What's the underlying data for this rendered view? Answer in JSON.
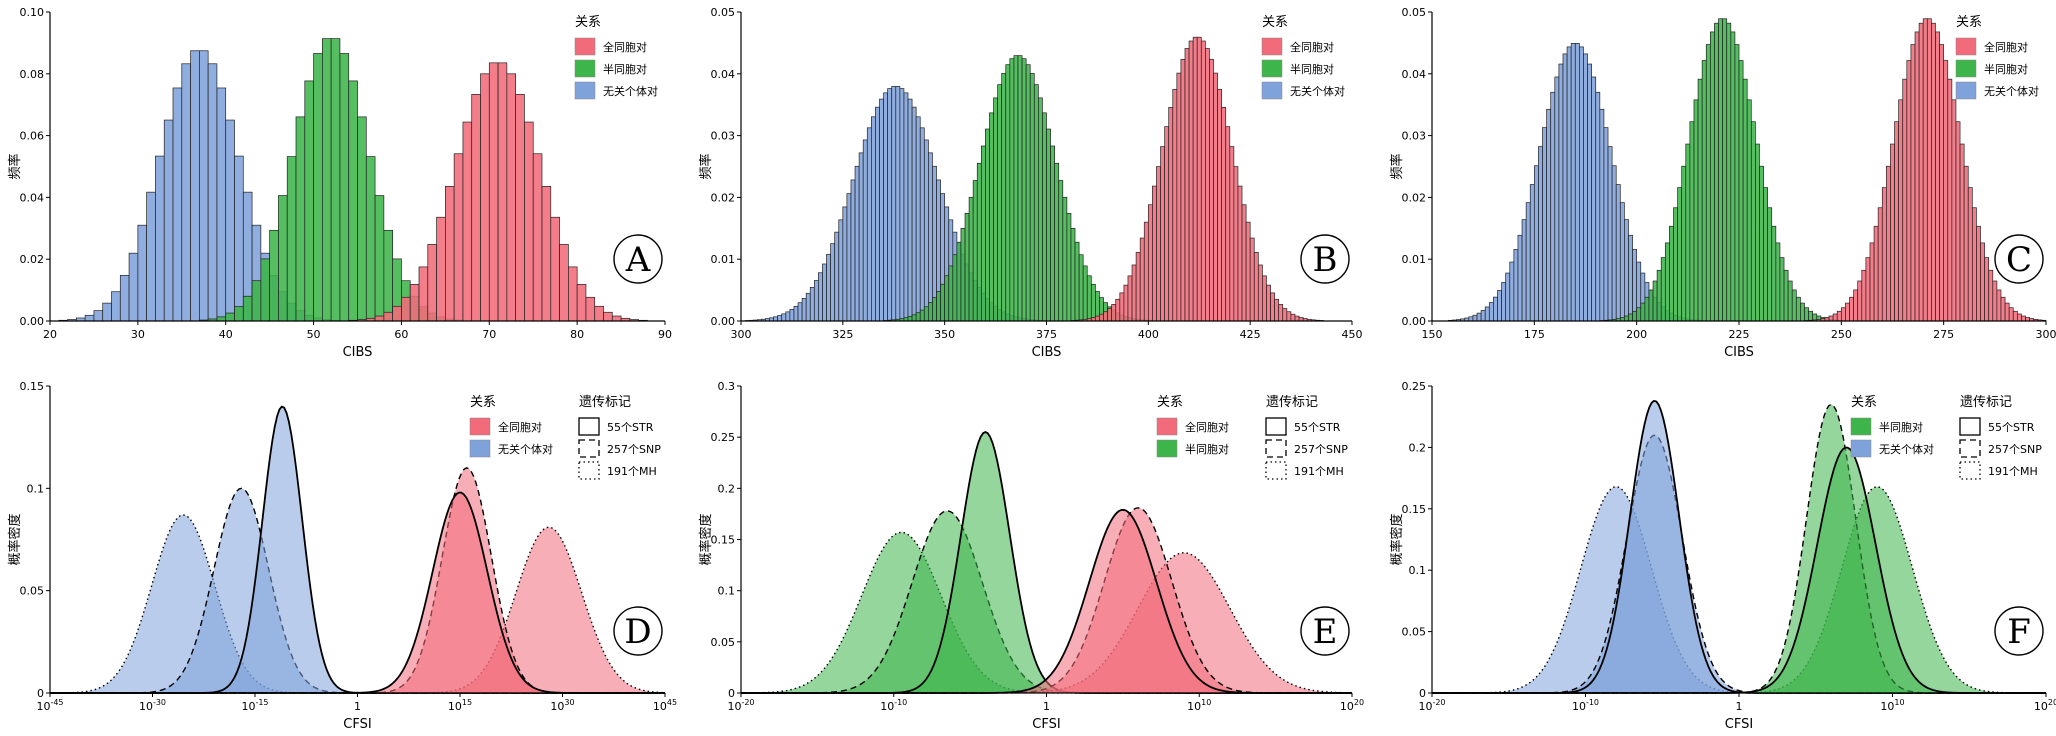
{
  "colors": {
    "full_sib": "#F26B7A",
    "half_sib": "#3DB54A",
    "unrelated": "#7FA2DB",
    "overlap_blue": "#5AA3DC",
    "overlap_green": "#6E9A3A"
  },
  "chart_data": [
    {
      "type": "bar",
      "panel": "A",
      "xlabel": "CIBS",
      "ylabel": "频率",
      "xlim": [
        20,
        90
      ],
      "ylim": [
        0,
        0.1
      ],
      "xticks": [
        "20",
        "30",
        "40",
        "50",
        "60",
        "70",
        "80",
        "90"
      ],
      "yticks": [
        "0.00",
        "0.02",
        "0.04",
        "0.06",
        "0.08",
        "0.10"
      ],
      "legend_title": "关系",
      "legend_position": "top-right",
      "series": [
        {
          "name": "全同胞对",
          "color_key": "full_sib",
          "mean": 71,
          "sd": 4.8,
          "peak": 0.084
        },
        {
          "name": "半同胞对",
          "color_key": "half_sib",
          "mean": 52,
          "sd": 4.3,
          "peak": 0.092
        },
        {
          "name": "无关个体对",
          "color_key": "unrelated",
          "mean": 37,
          "sd": 4.5,
          "peak": 0.088
        }
      ]
    },
    {
      "type": "bar",
      "panel": "B",
      "xlabel": "CIBS",
      "ylabel": "频率",
      "xlim": [
        300,
        450
      ],
      "ylim": [
        0,
        0.05
      ],
      "xticks": [
        "300",
        "325",
        "350",
        "375",
        "400",
        "425",
        "450"
      ],
      "yticks": [
        "0.00",
        "0.01",
        "0.02",
        "0.03",
        "0.04",
        "0.05"
      ],
      "legend_title": "关系",
      "legend_position": "top-right",
      "series": [
        {
          "name": "全同胞对",
          "color_key": "full_sib",
          "mean": 412,
          "sd": 8.6,
          "peak": 0.046
        },
        {
          "name": "半同胞对",
          "color_key": "half_sib",
          "mean": 368,
          "sd": 9.3,
          "peak": 0.043
        },
        {
          "name": "无关个体对",
          "color_key": "unrelated",
          "mean": 338,
          "sd": 10.4,
          "peak": 0.038
        }
      ]
    },
    {
      "type": "bar",
      "panel": "C",
      "xlabel": "CIBS",
      "ylabel": "频率",
      "xlim": [
        150,
        300
      ],
      "ylim": [
        0,
        0.05
      ],
      "xticks": [
        "150",
        "175",
        "200",
        "225",
        "250",
        "275",
        "300"
      ],
      "yticks": [
        "0.00",
        "0.01",
        "0.02",
        "0.03",
        "0.04",
        "0.05"
      ],
      "legend_title": "关系",
      "legend_position": "top-right",
      "series": [
        {
          "name": "全同胞对",
          "color_key": "full_sib",
          "mean": 271,
          "sd": 8.2,
          "peak": 0.049
        },
        {
          "name": "半同胞对",
          "color_key": "half_sib",
          "mean": 221,
          "sd": 8.2,
          "peak": 0.049
        },
        {
          "name": "无关个体对",
          "color_key": "unrelated",
          "mean": 185,
          "sd": 8.8,
          "peak": 0.045
        }
      ]
    },
    {
      "type": "area",
      "panel": "D",
      "xlabel": "CFSI",
      "ylabel": "概率密度",
      "xscale": "log",
      "xlim_exp": [
        -45,
        45
      ],
      "ylim": [
        0,
        0.15
      ],
      "xticks": [
        {
          "base": "10",
          "exp": "-45"
        },
        {
          "base": "10",
          "exp": "-30"
        },
        {
          "base": "10",
          "exp": "-15"
        },
        {
          "base": "1",
          "exp": ""
        },
        {
          "base": "10",
          "exp": "15"
        },
        {
          "base": "10",
          "exp": "30"
        },
        {
          "base": "10",
          "exp": "45"
        }
      ],
      "yticks": [
        "0",
        "0.05",
        "0.1",
        "0.15"
      ],
      "legend_title": "关系",
      "legend2_title": "遗传标记",
      "legend": [
        {
          "name": "全同胞对",
          "color_key": "full_sib"
        },
        {
          "name": "无关个体对",
          "color_key": "unrelated"
        }
      ],
      "markers": [
        {
          "name": "55个STR",
          "dash": "solid"
        },
        {
          "name": "257个SNP",
          "dash": "dashed"
        },
        {
          "name": "191个MH",
          "dash": "dotted"
        }
      ],
      "curves": [
        {
          "relation": "unrelated",
          "marker": "dotted",
          "mean": -25.5,
          "sd": 4.6,
          "peak": 0.087
        },
        {
          "relation": "unrelated",
          "marker": "dashed",
          "mean": -17,
          "sd": 4.0,
          "peak": 0.1
        },
        {
          "relation": "unrelated",
          "marker": "solid",
          "mean": -11,
          "sd": 2.9,
          "peak": 0.14
        },
        {
          "relation": "full_sib",
          "marker": "dotted",
          "mean": 28,
          "sd": 4.8,
          "peak": 0.081
        },
        {
          "relation": "full_sib",
          "marker": "dashed",
          "mean": 16,
          "sd": 3.6,
          "peak": 0.11
        },
        {
          "relation": "full_sib",
          "marker": "solid",
          "mean": 15,
          "sd": 4.0,
          "peak": 0.098
        }
      ]
    },
    {
      "type": "area",
      "panel": "E",
      "xlabel": "CFSI",
      "ylabel": "概率密度",
      "xscale": "log",
      "xlim_exp": [
        -20,
        20
      ],
      "ylim": [
        0,
        0.3
      ],
      "xticks": [
        {
          "base": "10",
          "exp": "-20"
        },
        {
          "base": "10",
          "exp": "-10"
        },
        {
          "base": "1",
          "exp": ""
        },
        {
          "base": "10",
          "exp": "10"
        },
        {
          "base": "10",
          "exp": "20"
        }
      ],
      "yticks": [
        "0",
        "0.05",
        "0.1",
        "0.15",
        "0.2",
        "0.25",
        "0.3"
      ],
      "legend_title": "关系",
      "legend2_title": "遗传标记",
      "legend": [
        {
          "name": "全同胞对",
          "color_key": "full_sib"
        },
        {
          "name": "半同胞对",
          "color_key": "half_sib"
        }
      ],
      "markers": [
        {
          "name": "55个STR",
          "dash": "solid"
        },
        {
          "name": "257个SNP",
          "dash": "dashed"
        },
        {
          "name": "191个MH",
          "dash": "dotted"
        }
      ],
      "curves": [
        {
          "relation": "half_sib",
          "marker": "dotted",
          "mean": -9.5,
          "sd": 2.6,
          "peak": 0.157
        },
        {
          "relation": "half_sib",
          "marker": "dashed",
          "mean": -6.5,
          "sd": 2.3,
          "peak": 0.178
        },
        {
          "relation": "half_sib",
          "marker": "solid",
          "mean": -4,
          "sd": 1.6,
          "peak": 0.255
        },
        {
          "relation": "full_sib",
          "marker": "dotted",
          "mean": 9,
          "sd": 3.0,
          "peak": 0.137
        },
        {
          "relation": "full_sib",
          "marker": "dashed",
          "mean": 6,
          "sd": 2.2,
          "peak": 0.181
        },
        {
          "relation": "full_sib",
          "marker": "solid",
          "mean": 5,
          "sd": 2.2,
          "peak": 0.179
        }
      ]
    },
    {
      "type": "area",
      "panel": "F",
      "xlabel": "CFSI",
      "ylabel": "概率密度",
      "xscale": "log",
      "xlim_exp": [
        -20,
        20
      ],
      "ylim": [
        0,
        0.25
      ],
      "xticks": [
        {
          "base": "10",
          "exp": "-20"
        },
        {
          "base": "10",
          "exp": "-10"
        },
        {
          "base": "1",
          "exp": ""
        },
        {
          "base": "10",
          "exp": "10"
        },
        {
          "base": "10",
          "exp": "20"
        }
      ],
      "yticks": [
        "0",
        "0.05",
        "0.1",
        "0.15",
        "0.2",
        "0.25"
      ],
      "legend_title": "关系",
      "legend2_title": "遗传标记",
      "legend": [
        {
          "name": "半同胞对",
          "color_key": "half_sib"
        },
        {
          "name": "无关个体对",
          "color_key": "unrelated"
        }
      ],
      "markers": [
        {
          "name": "55个STR",
          "dash": "solid"
        },
        {
          "name": "257个SNP",
          "dash": "dashed"
        },
        {
          "name": "191个MH",
          "dash": "dotted"
        }
      ],
      "curves": [
        {
          "relation": "unrelated",
          "marker": "dotted",
          "mean": -8,
          "sd": 2.3,
          "peak": 0.168
        },
        {
          "relation": "unrelated",
          "marker": "dashed",
          "mean": -5.5,
          "sd": 1.8,
          "peak": 0.21
        },
        {
          "relation": "unrelated",
          "marker": "solid",
          "mean": -5.5,
          "sd": 1.6,
          "peak": 0.238
        },
        {
          "relation": "half_sib",
          "marker": "dotted",
          "mean": 9,
          "sd": 2.3,
          "peak": 0.168
        },
        {
          "relation": "half_sib",
          "marker": "dashed",
          "mean": 6,
          "sd": 1.6,
          "peak": 0.235
        },
        {
          "relation": "half_sib",
          "marker": "solid",
          "mean": 7,
          "sd": 1.9,
          "peak": 0.2
        }
      ]
    }
  ]
}
